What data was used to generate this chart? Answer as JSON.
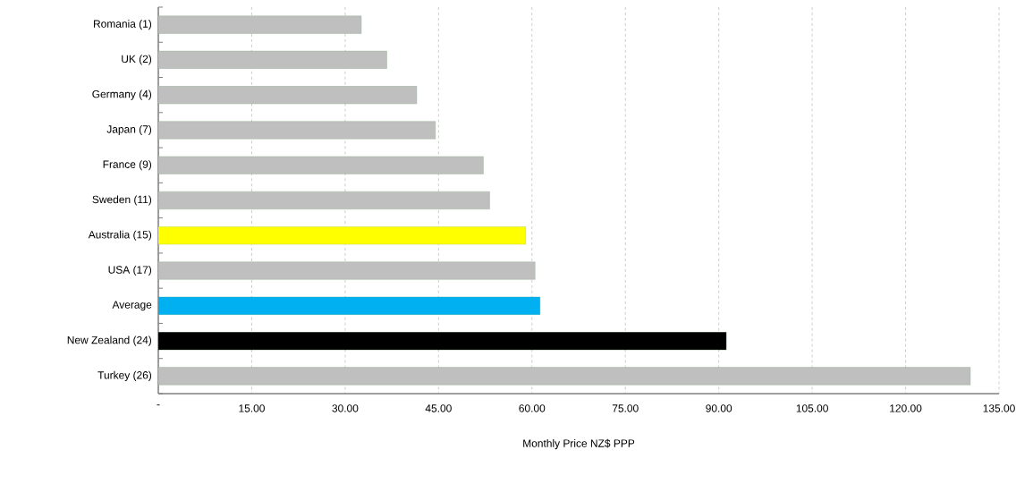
{
  "chart_data": {
    "type": "bar",
    "orientation": "horizontal",
    "xlabel": "Monthly  Price  NZ$  PPP",
    "categories": [
      "Romania (1)",
      "UK (2)",
      "Germany (4)",
      "Japan (7)",
      "France (9)",
      "Sweden (11)",
      "Australia (15)",
      "USA (17)",
      "Average",
      "New Zealand (24)",
      "Turkey (26)"
    ],
    "values": [
      32.6,
      36.7,
      41.5,
      44.5,
      52.2,
      53.2,
      59.0,
      60.5,
      61.3,
      91.2,
      130.4
    ],
    "colors": [
      "#bfbfbf",
      "#bfbfbf",
      "#bfbfbf",
      "#bfbfbf",
      "#bfbfbf",
      "#bfbfbf",
      "#ffff00",
      "#bfbfbf",
      "#00b0f0",
      "#000000",
      "#bfbfbf"
    ],
    "xlim": [
      0,
      135
    ],
    "xticks": [
      {
        "value": 0,
        "label": "-"
      },
      {
        "value": 15,
        "label": "15.00"
      },
      {
        "value": 30,
        "label": "30.00"
      },
      {
        "value": 45,
        "label": "45.00"
      },
      {
        "value": 60,
        "label": "60.00"
      },
      {
        "value": 75,
        "label": "75.00"
      },
      {
        "value": 90,
        "label": "90.00"
      },
      {
        "value": 105,
        "label": "105.00"
      },
      {
        "value": 120,
        "label": "120.00"
      },
      {
        "value": 135,
        "label": "135.00"
      }
    ],
    "grid": "x"
  }
}
